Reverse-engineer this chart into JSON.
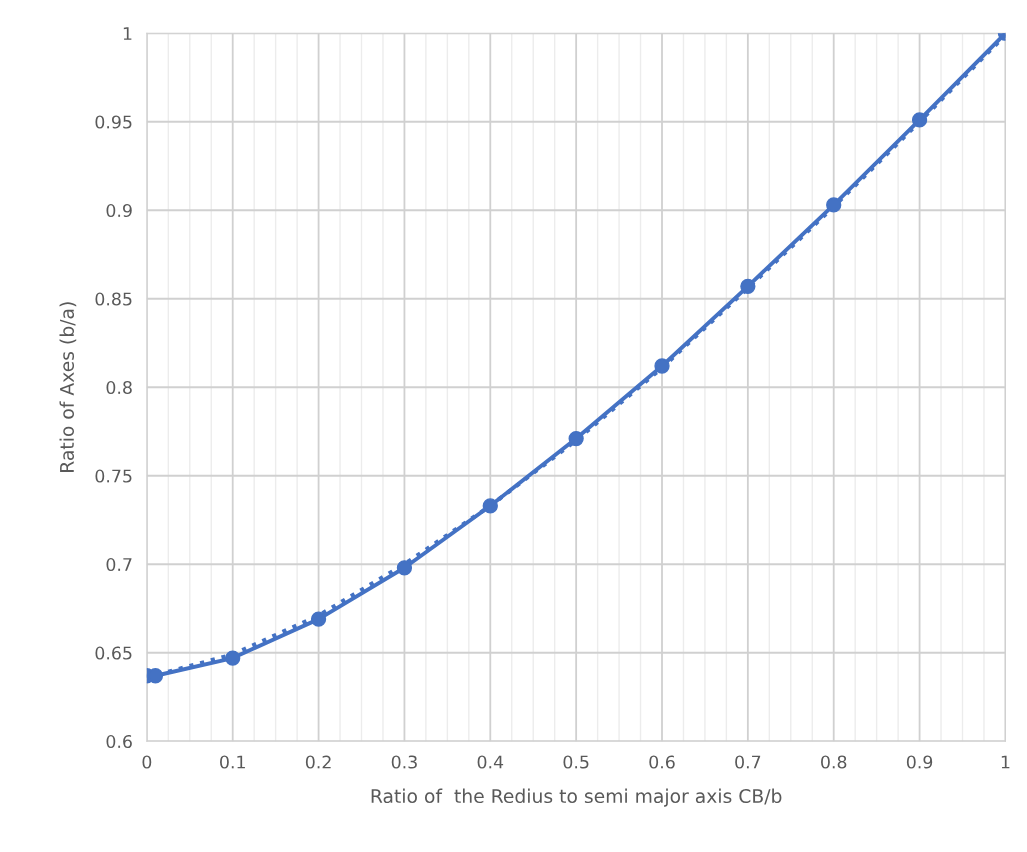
{
  "chart_data": {
    "type": "line",
    "xlabel": "Ratio of  the Redius to semi major axis CB/b",
    "ylabel": "Ratio of Axes (b/a)",
    "xlim": [
      0,
      1
    ],
    "xticks": [
      0,
      0.1,
      0.2,
      0.3,
      0.4,
      0.5,
      0.6,
      0.7,
      0.8,
      0.9,
      1
    ],
    "ylim": [
      0.6,
      1
    ],
    "yticks": [
      0.6,
      0.65,
      0.7,
      0.75,
      0.8,
      0.85,
      0.9,
      0.95,
      1
    ],
    "grid": true,
    "legend": false,
    "series": [
      {
        "color": "#4472c4",
        "marker": "circle",
        "line_style": "solid",
        "x": [
          0,
          0.01,
          0.1,
          0.2,
          0.3,
          0.4,
          0.5,
          0.6,
          0.7,
          0.8,
          0.9,
          1
        ],
        "values": [
          0.637,
          0.637,
          0.647,
          0.669,
          0.698,
          0.733,
          0.771,
          0.812,
          0.857,
          0.903,
          0.951,
          1.0
        ]
      },
      {
        "color": "#4472c4",
        "marker": "none",
        "line_style": "dotted",
        "x": [
          0,
          0.1,
          0.2,
          0.3,
          0.4,
          0.5,
          0.6,
          0.7,
          0.8,
          0.9,
          1
        ],
        "values": [
          0.636,
          0.649,
          0.671,
          0.7,
          0.733,
          0.77,
          0.811,
          0.856,
          0.902,
          0.95,
          0.999
        ]
      }
    ]
  }
}
